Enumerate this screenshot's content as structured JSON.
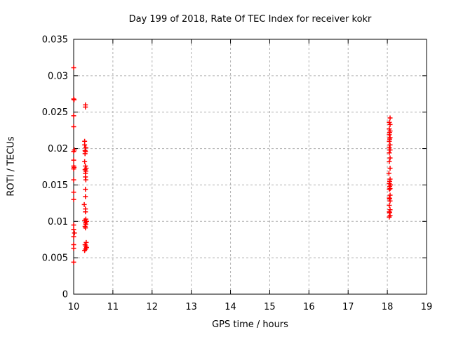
{
  "chart_data": {
    "type": "scatter",
    "title": "Day 199 of 2018, Rate Of TEC Index for receiver kokr",
    "xlabel": "GPS time / hours",
    "ylabel": "ROTI / TECUs",
    "xlim": [
      10,
      19
    ],
    "ylim": [
      0,
      0.035
    ],
    "xticks": [
      10,
      11,
      12,
      13,
      14,
      15,
      16,
      17,
      18,
      19
    ],
    "xtick_labels": [
      "10",
      "11",
      "12",
      "13",
      "14",
      "15",
      "16",
      "17",
      "18",
      "19"
    ],
    "yticks": [
      0,
      0.005,
      0.01,
      0.015,
      0.02,
      0.025,
      0.03,
      0.035
    ],
    "ytick_labels": [
      "0",
      "0.005",
      "0.01",
      "0.015",
      "0.02",
      "0.025",
      "0.03",
      "0.035"
    ],
    "grid": true,
    "legend": "none",
    "marker": "plus",
    "marker_color": "#ff0000",
    "series": [
      {
        "name": "ROTI",
        "points": [
          [
            10.0,
            0.0311
          ],
          [
            10.0,
            0.0268
          ],
          [
            10.01,
            0.0267
          ],
          [
            10.0,
            0.0245
          ],
          [
            10.0,
            0.023
          ],
          [
            10.02,
            0.0198
          ],
          [
            10.0,
            0.0196
          ],
          [
            10.0,
            0.0184
          ],
          [
            10.0,
            0.0176
          ],
          [
            10.01,
            0.0174
          ],
          [
            10.0,
            0.0172
          ],
          [
            10.0,
            0.0157
          ],
          [
            10.0,
            0.014
          ],
          [
            10.0,
            0.013
          ],
          [
            10.0,
            0.0095
          ],
          [
            10.0,
            0.0089
          ],
          [
            10.02,
            0.0084
          ],
          [
            10.0,
            0.0079
          ],
          [
            10.0,
            0.0068
          ],
          [
            10.0,
            0.0063
          ],
          [
            10.0,
            0.0044
          ],
          [
            10.3,
            0.026
          ],
          [
            10.3,
            0.0257
          ],
          [
            10.28,
            0.021
          ],
          [
            10.28,
            0.0205
          ],
          [
            10.31,
            0.0201
          ],
          [
            10.29,
            0.0197
          ],
          [
            10.3,
            0.0196
          ],
          [
            10.29,
            0.0193
          ],
          [
            10.28,
            0.0182
          ],
          [
            10.3,
            0.0176
          ],
          [
            10.32,
            0.0173
          ],
          [
            10.29,
            0.0171
          ],
          [
            10.31,
            0.0169
          ],
          [
            10.3,
            0.0166
          ],
          [
            10.3,
            0.0161
          ],
          [
            10.31,
            0.0157
          ],
          [
            10.3,
            0.0144
          ],
          [
            10.3,
            0.0134
          ],
          [
            10.27,
            0.0123
          ],
          [
            10.3,
            0.0117
          ],
          [
            10.3,
            0.0113
          ],
          [
            10.31,
            0.0103
          ],
          [
            10.28,
            0.0101
          ],
          [
            10.33,
            0.01
          ],
          [
            10.3,
            0.0098
          ],
          [
            10.31,
            0.0096
          ],
          [
            10.29,
            0.0093
          ],
          [
            10.3,
            0.0091
          ],
          [
            10.32,
            0.0071
          ],
          [
            10.29,
            0.0068
          ],
          [
            10.31,
            0.0066
          ],
          [
            10.33,
            0.0064
          ],
          [
            10.3,
            0.0062
          ],
          [
            10.28,
            0.006
          ],
          [
            18.07,
            0.0242
          ],
          [
            18.05,
            0.0236
          ],
          [
            18.07,
            0.0233
          ],
          [
            18.05,
            0.0227
          ],
          [
            18.07,
            0.0224
          ],
          [
            18.06,
            0.0222
          ],
          [
            18.05,
            0.0219
          ],
          [
            18.07,
            0.0215
          ],
          [
            18.06,
            0.0213
          ],
          [
            18.05,
            0.021
          ],
          [
            18.07,
            0.0205
          ],
          [
            18.05,
            0.0201
          ],
          [
            18.07,
            0.0198
          ],
          [
            18.05,
            0.0194
          ],
          [
            18.07,
            0.0187
          ],
          [
            18.05,
            0.0182
          ],
          [
            18.07,
            0.0173
          ],
          [
            18.04,
            0.0166
          ],
          [
            18.07,
            0.0158
          ],
          [
            18.06,
            0.0155
          ],
          [
            18.05,
            0.0152
          ],
          [
            18.08,
            0.015
          ],
          [
            18.06,
            0.0148
          ],
          [
            18.07,
            0.0145
          ],
          [
            18.05,
            0.0144
          ],
          [
            18.07,
            0.0136
          ],
          [
            18.05,
            0.0132
          ],
          [
            18.06,
            0.0131
          ],
          [
            18.07,
            0.0128
          ],
          [
            18.05,
            0.0122
          ],
          [
            18.07,
            0.0116
          ],
          [
            18.05,
            0.0113
          ],
          [
            18.06,
            0.0112
          ],
          [
            18.07,
            0.0108
          ],
          [
            18.05,
            0.0106
          ]
        ]
      }
    ]
  }
}
